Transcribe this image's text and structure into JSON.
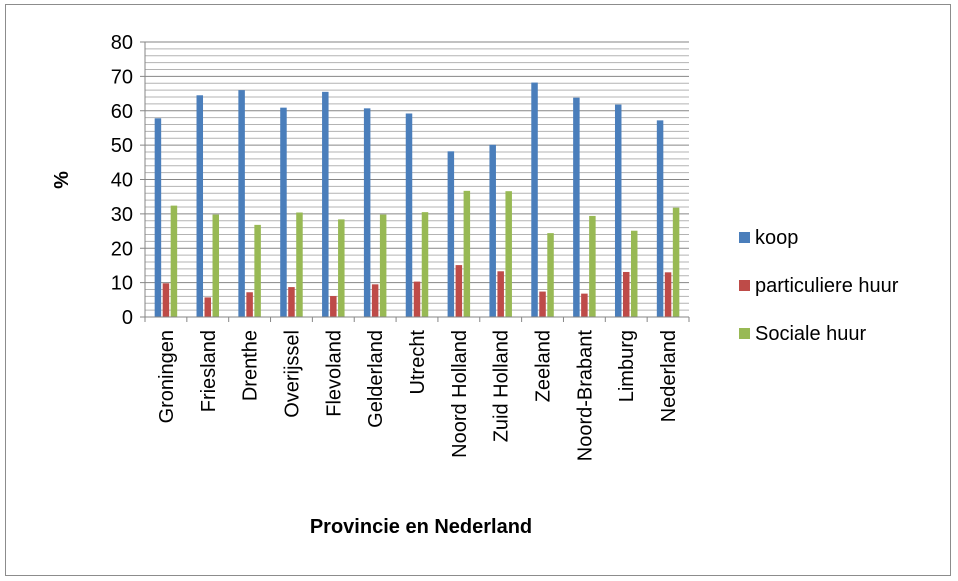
{
  "chart_data": {
    "type": "bar",
    "title": "",
    "xlabel": "Provincie en Nederland",
    "ylabel": "%",
    "ylim": [
      0,
      80
    ],
    "ytick_step": 10,
    "minor_gridlines_per_major": 5,
    "grid": true,
    "legend_position": "right",
    "categories": [
      "Groningen",
      "Friesland",
      "Drenthe",
      "Overijssel",
      "Flevoland",
      "Gelderland",
      "Utrecht",
      "Noord Holland",
      "Zuid Holland",
      "Zeeland",
      "Noord-Brabant",
      "Limburg",
      "Nederland"
    ],
    "series": [
      {
        "name": "koop",
        "color": "#4a7ebb",
        "values": [
          57.8,
          64.5,
          66.0,
          60.9,
          65.5,
          60.7,
          59.2,
          48.2,
          50.1,
          68.2,
          63.8,
          61.8,
          57.2
        ]
      },
      {
        "name": "particuliere huur",
        "color": "#be4b48",
        "values": [
          9.8,
          5.7,
          7.2,
          8.7,
          6.1,
          9.5,
          10.3,
          15.1,
          13.3,
          7.4,
          6.8,
          13.1,
          13.0
        ]
      },
      {
        "name": "Sociale huur",
        "color": "#98b954",
        "values": [
          32.4,
          29.8,
          26.8,
          30.4,
          28.4,
          29.8,
          30.5,
          36.7,
          36.6,
          24.4,
          29.4,
          25.1,
          31.8
        ]
      }
    ]
  }
}
